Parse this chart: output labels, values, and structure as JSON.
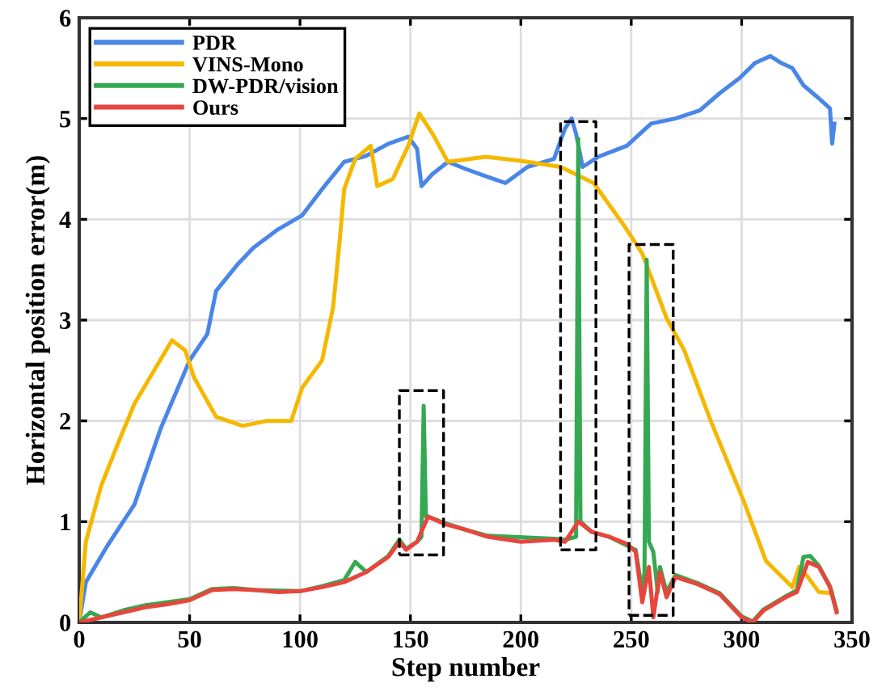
{
  "chart_data": {
    "type": "line",
    "xlabel": "Step number",
    "ylabel": "Horizontal position error(m)",
    "xlim": [
      0,
      350
    ],
    "ylim": [
      0,
      6
    ],
    "xticks": [
      0,
      50,
      100,
      150,
      200,
      250,
      300,
      350
    ],
    "yticks": [
      0,
      1,
      2,
      3,
      4,
      5,
      6
    ],
    "grid": true,
    "legend": "top left",
    "line_style": "solid",
    "marker": "none",
    "series": [
      {
        "name": "PDR",
        "color": "#4a86e8",
        "x": [
          0,
          3,
          13,
          25,
          37,
          50,
          58,
          62,
          72,
          79,
          90,
          101,
          110,
          120,
          130,
          140,
          149,
          153,
          155,
          160,
          167,
          175,
          185,
          193,
          203,
          215,
          220,
          223,
          225,
          228,
          235,
          248,
          259,
          270,
          281,
          290,
          299,
          306,
          313,
          318,
          323,
          328,
          335,
          340,
          341,
          342
        ],
        "values": [
          0,
          0.4,
          0.77,
          1.17,
          1.93,
          2.6,
          2.86,
          3.29,
          3.56,
          3.72,
          3.9,
          4.04,
          4.3,
          4.57,
          4.63,
          4.75,
          4.82,
          4.7,
          4.33,
          4.45,
          4.57,
          4.5,
          4.42,
          4.36,
          4.52,
          4.6,
          4.9,
          5.0,
          4.85,
          4.52,
          4.62,
          4.73,
          4.95,
          5.0,
          5.08,
          5.25,
          5.4,
          5.55,
          5.62,
          5.55,
          5.5,
          5.33,
          5.2,
          5.1,
          4.75,
          4.95
        ]
      },
      {
        "name": "VINS-Mono",
        "color": "#f5b800",
        "x": [
          0,
          3,
          10,
          18,
          25,
          35,
          42,
          48,
          52,
          62,
          74,
          85,
          96,
          101,
          110,
          115,
          118,
          120,
          125,
          132,
          135,
          142,
          149,
          154,
          160,
          167,
          184,
          200,
          218,
          233,
          247,
          255,
          266,
          274,
          286,
          301,
          311,
          323,
          326,
          330,
          335,
          341
        ],
        "values": [
          0,
          0.8,
          1.36,
          1.8,
          2.17,
          2.54,
          2.8,
          2.7,
          2.43,
          2.04,
          1.95,
          2.0,
          2.0,
          2.33,
          2.6,
          3.13,
          3.8,
          4.3,
          4.6,
          4.73,
          4.33,
          4.4,
          4.73,
          5.05,
          4.85,
          4.57,
          4.62,
          4.58,
          4.52,
          4.36,
          3.93,
          3.66,
          3.02,
          2.7,
          2.0,
          1.2,
          0.61,
          0.35,
          0.55,
          0.45,
          0.3,
          0.29
        ]
      },
      {
        "name": "DW-PDR/vision",
        "color": "#35a852",
        "x": [
          0,
          5,
          10,
          20,
          30,
          40,
          50,
          60,
          70,
          80,
          100,
          110,
          120,
          125,
          130,
          140,
          145,
          148,
          153,
          155,
          156,
          157,
          158,
          165,
          175,
          185,
          215,
          220,
          225,
          226,
          227,
          232,
          240,
          252,
          255,
          256,
          257,
          258,
          260,
          262,
          263,
          266,
          270,
          280,
          290,
          300,
          305,
          310,
          320,
          325,
          328,
          331,
          335,
          340,
          343
        ],
        "values": [
          0,
          0.1,
          0.05,
          0.12,
          0.17,
          0.2,
          0.23,
          0.33,
          0.34,
          0.32,
          0.31,
          0.36,
          0.42,
          0.6,
          0.5,
          0.66,
          0.82,
          0.73,
          0.8,
          0.85,
          2.15,
          1.05,
          1.05,
          0.99,
          0.92,
          0.86,
          0.83,
          0.82,
          0.85,
          4.8,
          1.0,
          0.9,
          0.85,
          0.72,
          0.3,
          0.5,
          3.6,
          0.8,
          0.7,
          0.3,
          0.55,
          0.3,
          0.47,
          0.39,
          0.29,
          0.06,
          0.01,
          0.13,
          0.26,
          0.32,
          0.65,
          0.66,
          0.56,
          0.36,
          0.12
        ]
      },
      {
        "name": "Ours",
        "color": "#e8453c",
        "x": [
          0,
          10,
          20,
          30,
          40,
          50,
          60,
          70,
          80,
          90,
          100,
          110,
          120,
          130,
          140,
          145,
          148,
          153,
          158,
          165,
          175,
          185,
          200,
          215,
          220,
          226,
          232,
          240,
          248,
          252,
          255,
          258,
          260,
          263,
          266,
          270,
          280,
          290,
          300,
          305,
          310,
          320,
          325,
          330,
          335,
          340,
          343
        ],
        "values": [
          0,
          0.05,
          0.1,
          0.15,
          0.18,
          0.22,
          0.32,
          0.33,
          0.32,
          0.3,
          0.31,
          0.35,
          0.4,
          0.5,
          0.65,
          0.8,
          0.72,
          0.8,
          1.05,
          0.98,
          0.92,
          0.85,
          0.8,
          0.82,
          0.8,
          1.0,
          0.9,
          0.85,
          0.78,
          0.7,
          0.2,
          0.55,
          0.05,
          0.5,
          0.25,
          0.45,
          0.38,
          0.28,
          0.05,
          0.0,
          0.12,
          0.25,
          0.3,
          0.6,
          0.55,
          0.35,
          0.1
        ]
      }
    ]
  }
}
